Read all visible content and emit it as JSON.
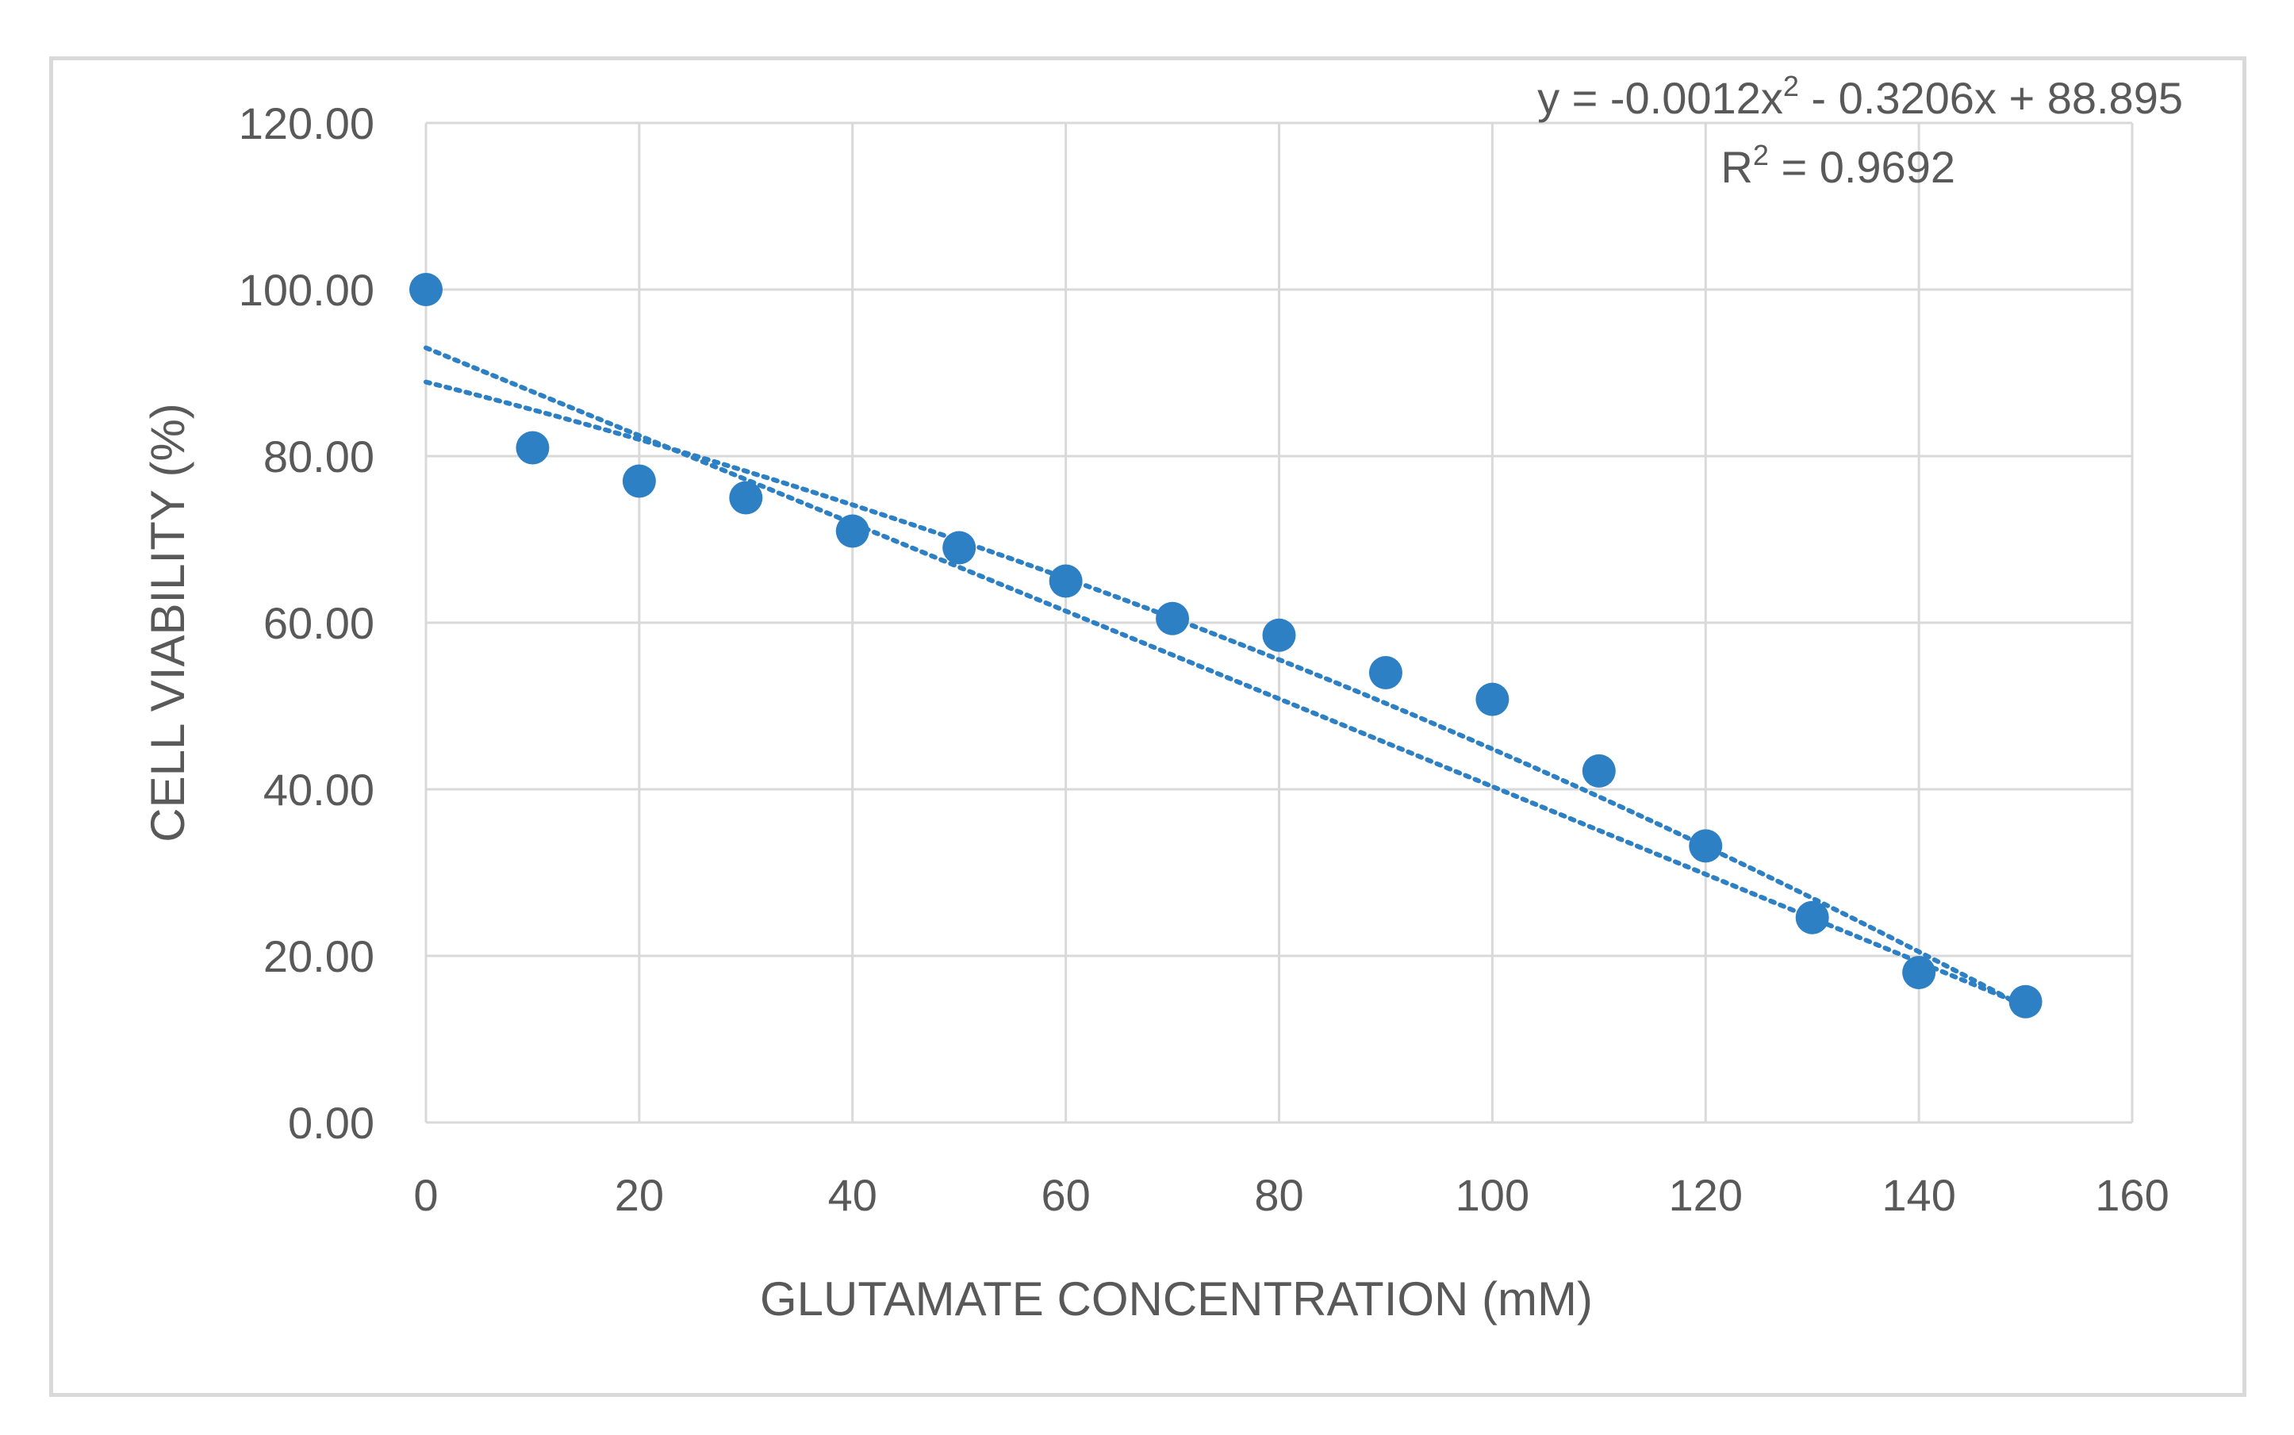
{
  "chart_data": {
    "type": "scatter",
    "title": "",
    "xlabel": "GLUTAMATE CONCENTRATION (mM)",
    "ylabel": "CELL VIABILITY (%)",
    "xlim": [
      0,
      160
    ],
    "ylim": [
      0,
      120
    ],
    "x_ticks": [
      "0",
      "20",
      "40",
      "60",
      "80",
      "100",
      "120",
      "140",
      "160"
    ],
    "y_ticks": [
      "0.00",
      "20.00",
      "40.00",
      "60.00",
      "80.00",
      "100.00",
      "120.00"
    ],
    "x_tick_values": [
      0,
      20,
      40,
      60,
      80,
      100,
      120,
      140,
      160
    ],
    "y_tick_values": [
      0,
      20,
      40,
      60,
      80,
      100,
      120
    ],
    "grid": true,
    "series": [
      {
        "name": "Cell viability",
        "color": "#2e80c5",
        "x": [
          0,
          10,
          20,
          30,
          40,
          50,
          60,
          70,
          80,
          90,
          100,
          110,
          120,
          130,
          140,
          150
        ],
        "y": [
          100,
          81,
          77,
          75,
          71,
          69,
          65,
          60.5,
          58.5,
          54,
          50.8,
          42.2,
          33.2,
          24.6,
          18,
          14.5
        ]
      }
    ],
    "trendlines": [
      {
        "name": "linear",
        "x_range": [
          0,
          150
        ],
        "y_range": [
          93,
          14
        ]
      },
      {
        "name": "polynomial",
        "equation": {
          "prefix": "y = -0.0012x",
          "sup": "2",
          "suffix": " - 0.3206x + 88.895"
        },
        "r_squared": {
          "prefix": "R",
          "sup": "2",
          "suffix": " = 0.9692"
        },
        "coefficients": [
          -0.0012,
          -0.3206,
          88.895
        ],
        "x_range": [
          0,
          150
        ]
      }
    ]
  }
}
